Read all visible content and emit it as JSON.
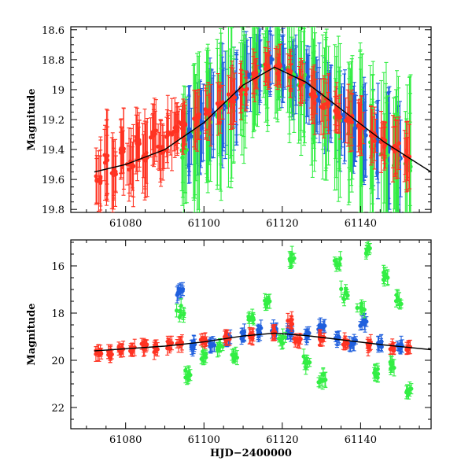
{
  "chart_data": [
    {
      "type": "scatter",
      "panel": "top",
      "title": "",
      "xlabel": "",
      "ylabel": "Magnitude",
      "xlim": [
        61066,
        61158
      ],
      "ylim": [
        19.82,
        18.58
      ],
      "y_inverted": true,
      "xticks": [
        61080,
        61100,
        61120,
        61140
      ],
      "xtick_labels": [
        "61080",
        "61100",
        "61120",
        "61140"
      ],
      "yticks": [
        18.6,
        18.8,
        19.0,
        19.2,
        19.4,
        19.6,
        19.8
      ],
      "ytick_labels": [
        "18.6",
        "18.8",
        "19",
        "19.2",
        "19.4",
        "19.6",
        "19.8"
      ],
      "grid": false,
      "legend": "none",
      "series": [
        {
          "name": "red",
          "color": "#ff3322",
          "approx_seed_points": [
            [
              61073,
              19.6,
              0.22
            ],
            [
              61075,
              19.45,
              0.25
            ],
            [
              61077,
              19.55,
              0.2
            ],
            [
              61079,
              19.4,
              0.22
            ],
            [
              61081,
              19.5,
              0.2
            ],
            [
              61083,
              19.35,
              0.18
            ],
            [
              61085,
              19.45,
              0.22
            ],
            [
              61087,
              19.3,
              0.18
            ],
            [
              61089,
              19.4,
              0.18
            ],
            [
              61091,
              19.3,
              0.18
            ],
            [
              61093,
              19.25,
              0.15
            ],
            [
              61095,
              19.25,
              0.15
            ],
            [
              61098,
              19.2,
              0.15
            ],
            [
              61101,
              19.15,
              0.15
            ],
            [
              61104,
              19.1,
              0.15
            ],
            [
              61107,
              19.05,
              0.15
            ],
            [
              61110,
              19.0,
              0.15
            ],
            [
              61113,
              18.9,
              0.12
            ],
            [
              61116,
              18.85,
              0.12
            ],
            [
              61119,
              18.85,
              0.12
            ],
            [
              61122,
              18.9,
              0.12
            ],
            [
              61125,
              18.95,
              0.12
            ],
            [
              61128,
              19.05,
              0.15
            ],
            [
              61131,
              19.1,
              0.15
            ],
            [
              61134,
              19.15,
              0.15
            ],
            [
              61137,
              19.2,
              0.15
            ],
            [
              61140,
              19.25,
              0.15
            ],
            [
              61143,
              19.3,
              0.15
            ],
            [
              61146,
              19.35,
              0.15
            ],
            [
              61149,
              19.4,
              0.18
            ],
            [
              61152,
              19.45,
              0.18
            ]
          ]
        },
        {
          "name": "blue",
          "color": "#1f5fdd",
          "approx_seed_points": [
            [
              61096,
              19.3,
              0.25
            ],
            [
              61099,
              19.25,
              0.25
            ],
            [
              61102,
              19.15,
              0.25
            ],
            [
              61105,
              19.1,
              0.3
            ],
            [
              61108,
              19.05,
              0.25
            ],
            [
              61111,
              18.9,
              0.2
            ],
            [
              61114,
              18.85,
              0.2
            ],
            [
              61117,
              18.8,
              0.2
            ],
            [
              61120,
              18.85,
              0.2
            ],
            [
              61123,
              18.9,
              0.2
            ],
            [
              61126,
              18.95,
              0.2
            ],
            [
              61129,
              19.05,
              0.25
            ],
            [
              61132,
              19.1,
              0.25
            ],
            [
              61135,
              19.2,
              0.25
            ],
            [
              61138,
              19.25,
              0.25
            ],
            [
              61141,
              19.3,
              0.25
            ],
            [
              61144,
              19.35,
              0.3
            ],
            [
              61147,
              19.4,
              0.3
            ],
            [
              61150,
              19.45,
              0.3
            ]
          ]
        },
        {
          "name": "green",
          "color": "#33ee44",
          "approx_seed_points": [
            [
              61095,
              19.4,
              0.35
            ],
            [
              61098,
              19.3,
              0.4
            ],
            [
              61101,
              19.2,
              0.4
            ],
            [
              61104,
              19.15,
              0.4
            ],
            [
              61107,
              19.1,
              0.4
            ],
            [
              61110,
              19.0,
              0.4
            ],
            [
              61113,
              18.9,
              0.35
            ],
            [
              61116,
              18.85,
              0.3
            ],
            [
              61119,
              18.85,
              0.3
            ],
            [
              61122,
              18.9,
              0.3
            ],
            [
              61125,
              18.95,
              0.35
            ],
            [
              61128,
              19.05,
              0.4
            ],
            [
              61131,
              19.1,
              0.4
            ],
            [
              61134,
              19.2,
              0.4
            ],
            [
              61137,
              19.25,
              0.4
            ],
            [
              61140,
              19.35,
              0.45
            ],
            [
              61143,
              19.4,
              0.45
            ],
            [
              61146,
              19.45,
              0.45
            ],
            [
              61149,
              19.5,
              0.45
            ],
            [
              61152,
              19.5,
              0.45
            ]
          ]
        }
      ],
      "model_curve": {
        "name": "fit",
        "color": "#000000",
        "peak_x": 61118,
        "peak_y": 18.85,
        "points": [
          [
            61072,
            19.55
          ],
          [
            61080,
            19.5
          ],
          [
            61090,
            19.4
          ],
          [
            61100,
            19.22
          ],
          [
            61110,
            18.97
          ],
          [
            61118,
            18.85
          ],
          [
            61126,
            18.95
          ],
          [
            61136,
            19.15
          ],
          [
            61146,
            19.35
          ],
          [
            61152,
            19.45
          ],
          [
            61158,
            19.55
          ]
        ]
      }
    },
    {
      "type": "scatter",
      "panel": "bottom",
      "title": "",
      "xlabel": "HJD−2400000",
      "ylabel": "Magnitude",
      "xlim": [
        61066,
        61158
      ],
      "ylim": [
        22.9,
        14.9
      ],
      "y_inverted": true,
      "xticks": [
        61080,
        61100,
        61120,
        61140
      ],
      "xtick_labels": [
        "61080",
        "61100",
        "61120",
        "61140"
      ],
      "yticks": [
        16,
        18,
        20,
        22
      ],
      "ytick_labels": [
        "16",
        "18",
        "20",
        "22"
      ],
      "grid": false,
      "legend": "none",
      "series": [
        {
          "name": "red",
          "color": "#ff3322",
          "approx_seed_points": [
            [
              61073,
              19.65
            ],
            [
              61076,
              19.7
            ],
            [
              61079,
              19.55
            ],
            [
              61082,
              19.6
            ],
            [
              61085,
              19.4
            ],
            [
              61088,
              19.45
            ],
            [
              61091,
              19.35
            ],
            [
              61094,
              19.3
            ],
            [
              61100,
              19.2
            ],
            [
              61106,
              19.05
            ],
            [
              61112,
              18.95
            ],
            [
              61118,
              18.85
            ],
            [
              61122,
              18.4
            ],
            [
              61124,
              19.2
            ],
            [
              61130,
              19.1
            ],
            [
              61136,
              19.25
            ],
            [
              61142,
              19.35
            ],
            [
              61148,
              19.45
            ],
            [
              61152,
              19.5
            ]
          ]
        },
        {
          "name": "blue",
          "color": "#1f5fdd",
          "approx_seed_points": [
            [
              61094,
              17.1
            ],
            [
              61097,
              19.4
            ],
            [
              61102,
              19.3
            ],
            [
              61106,
              19.1
            ],
            [
              61110,
              18.95
            ],
            [
              61114,
              18.8
            ],
            [
              61118,
              18.75
            ],
            [
              61122,
              18.8
            ],
            [
              61126,
              18.9
            ],
            [
              61130,
              18.6
            ],
            [
              61134,
              19.1
            ],
            [
              61138,
              19.25
            ],
            [
              61141,
              18.4
            ],
            [
              61145,
              19.3
            ],
            [
              61150,
              19.4
            ]
          ]
        },
        {
          "name": "green",
          "color": "#33ee44",
          "approx_seed_points": [
            [
              61094,
              18.0
            ],
            [
              61096,
              20.6
            ],
            [
              61100,
              19.8
            ],
            [
              61104,
              19.4
            ],
            [
              61108,
              19.9
            ],
            [
              61112,
              18.3
            ],
            [
              61116,
              17.5
            ],
            [
              61120,
              19.2
            ],
            [
              61122,
              15.7
            ],
            [
              61126,
              20.1
            ],
            [
              61130,
              20.8
            ],
            [
              61134,
              15.9
            ],
            [
              61136,
              17.2
            ],
            [
              61140,
              17.8
            ],
            [
              61142,
              15.3
            ],
            [
              61144,
              20.5
            ],
            [
              61146,
              16.5
            ],
            [
              61148,
              20.2
            ],
            [
              61150,
              17.5
            ],
            [
              61152,
              21.3
            ]
          ]
        }
      ],
      "model_curve": {
        "name": "fit",
        "color": "#000000",
        "points": [
          [
            61072,
            19.6
          ],
          [
            61090,
            19.4
          ],
          [
            61100,
            19.22
          ],
          [
            61110,
            18.97
          ],
          [
            61118,
            18.85
          ],
          [
            61126,
            18.95
          ],
          [
            61136,
            19.15
          ],
          [
            61146,
            19.35
          ],
          [
            61158,
            19.55
          ]
        ]
      }
    }
  ]
}
